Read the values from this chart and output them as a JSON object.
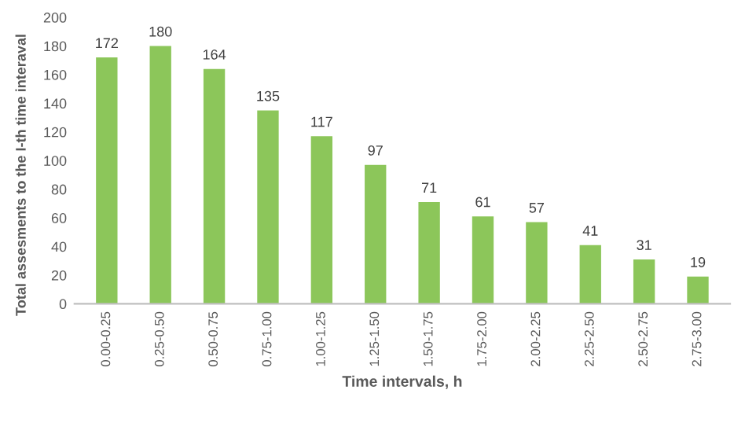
{
  "chart_data": {
    "type": "bar",
    "xlabel": "Time intervals, h",
    "ylabel": "Total assesments to the I-th time interaval",
    "categories": [
      "0.00-0.25",
      "0.25-0.50",
      "0.50-0.75",
      "0.75-1.00",
      "1.00-1.25",
      "1.25-1.50",
      "1.50-1.75",
      "1.75-2.00",
      "2.00-2.25",
      "2.25-2.50",
      "2.50-2.75",
      "2.75-3.00"
    ],
    "values": [
      172,
      180,
      164,
      135,
      117,
      97,
      71,
      61,
      57,
      41,
      31,
      19
    ],
    "color": "#8cc65a",
    "ylim": [
      0,
      200
    ],
    "yticks": [
      0,
      20,
      40,
      60,
      80,
      100,
      120,
      140,
      160,
      180,
      200
    ],
    "grid": false,
    "data_labels": true
  }
}
